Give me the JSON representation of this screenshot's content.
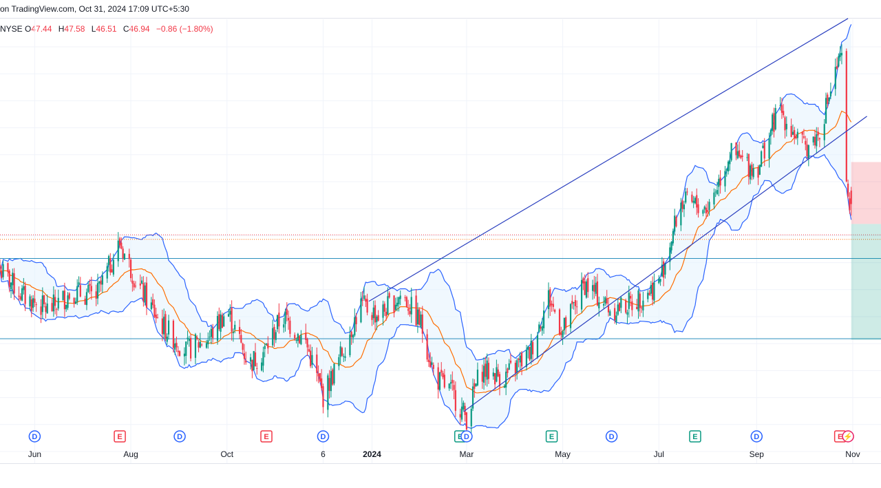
{
  "header": {
    "text": "on TradingView.com, Oct 31, 2024 17:09 UTC+5:30"
  },
  "ohlc": {
    "exchange": "NYSE",
    "o_label": "O",
    "o_value": "47.44",
    "h_label": "H",
    "h_value": "47.58",
    "l_label": "L",
    "l_value": "46.51",
    "c_label": "C",
    "c_value": "46.94",
    "change": "−0.86 (−1.80%)"
  },
  "colors": {
    "up": "#089981",
    "down": "#f23645",
    "band": "#2962ff",
    "band_fill": "#e3f2fd",
    "basis": "#ff6d00",
    "channel": "#2a3fbf",
    "hline": "#2a8fbd",
    "grid": "#f0f3fa",
    "axis_text": "#131722",
    "dividend": "#2962ff",
    "earnings_red": "#f23645",
    "earnings_green": "#089981",
    "split": "#e91e63"
  },
  "chart_data": {
    "type": "candlestick",
    "title": "",
    "x_ticks": [
      "Jun",
      "Aug",
      "Oct",
      "6",
      "2024",
      "Mar",
      "May",
      "Jul",
      "Sep",
      "Nov"
    ],
    "x_range": [
      "2023-05-10",
      "2024-11-08"
    ],
    "y_range": [
      38.8,
      53.8
    ],
    "overlays": [
      "Bollinger Bands (upper, basis, lower)",
      "ascending channel",
      "horizontal support levels",
      "risk/reward position box"
    ],
    "horizontal_levels": [
      44.92,
      41.94
    ],
    "dotted_levels": [
      45.8,
      45.63
    ],
    "channel": {
      "upper": [
        [
          "2023-12-30",
          43.33
        ],
        [
          "2024-10-29",
          53.83
        ]
      ],
      "lower": [
        [
          "2024-02-28",
          39.23
        ],
        [
          "2024-11-10",
          50.2
        ]
      ]
    },
    "position_box": {
      "from": "2024-10-31",
      "to": "2024-11-08",
      "stop": 48.5,
      "entry": 46.2,
      "target": 41.9
    },
    "events": [
      {
        "type": "dividend",
        "label": "D",
        "date": "2023-06-01"
      },
      {
        "type": "earnings",
        "label": "E",
        "date": "2023-07-25",
        "color": "red"
      },
      {
        "type": "dividend",
        "label": "D",
        "date": "2023-09-01"
      },
      {
        "type": "earnings",
        "label": "E",
        "date": "2023-10-26",
        "color": "red"
      },
      {
        "type": "dividend",
        "label": "D",
        "date": "2023-12-01"
      },
      {
        "type": "earnings",
        "label": "E",
        "date": "2024-02-26",
        "color": "green"
      },
      {
        "type": "dividend",
        "label": "D",
        "date": "2024-03-01"
      },
      {
        "type": "earnings",
        "label": "E",
        "date": "2024-04-24",
        "color": "green"
      },
      {
        "type": "dividend",
        "label": "D",
        "date": "2024-06-01"
      },
      {
        "type": "earnings",
        "label": "E",
        "date": "2024-07-24",
        "color": "green"
      },
      {
        "type": "dividend",
        "label": "D",
        "date": "2024-09-01"
      },
      {
        "type": "earnings",
        "label": "E",
        "date": "2024-10-24",
        "color": "red"
      },
      {
        "type": "split",
        "label": "⚡",
        "date": "2024-10-29"
      }
    ],
    "anchors": [
      [
        "2023-05-10",
        44.5
      ],
      [
        "2023-05-25",
        43.5
      ],
      [
        "2023-06-10",
        43.0
      ],
      [
        "2023-06-25",
        43.7
      ],
      [
        "2023-07-10",
        43.5
      ],
      [
        "2023-07-25",
        45.5
      ],
      [
        "2023-08-05",
        44.0
      ],
      [
        "2023-08-20",
        42.5
      ],
      [
        "2023-09-05",
        41.5
      ],
      [
        "2023-09-20",
        42.0
      ],
      [
        "2023-10-01",
        43.0
      ],
      [
        "2023-10-15",
        41.0
      ],
      [
        "2023-10-25",
        41.5
      ],
      [
        "2023-11-05",
        42.8
      ],
      [
        "2023-11-20",
        41.8
      ],
      [
        "2023-12-01",
        39.8
      ],
      [
        "2023-12-10",
        41.0
      ],
      [
        "2023-12-25",
        43.2
      ],
      [
        "2024-01-05",
        42.8
      ],
      [
        "2024-01-20",
        43.6
      ],
      [
        "2024-02-01",
        42.5
      ],
      [
        "2024-02-10",
        40.5
      ],
      [
        "2024-02-20",
        40.0
      ],
      [
        "2024-03-01",
        39.0
      ],
      [
        "2024-03-10",
        40.8
      ],
      [
        "2024-03-25",
        40.5
      ],
      [
        "2024-04-10",
        41.4
      ],
      [
        "2024-04-22",
        43.5
      ],
      [
        "2024-05-01",
        42.2
      ],
      [
        "2024-05-15",
        44.0
      ],
      [
        "2024-06-01",
        43.0
      ],
      [
        "2024-06-15",
        43.3
      ],
      [
        "2024-07-01",
        44.0
      ],
      [
        "2024-07-15",
        47.0
      ],
      [
        "2024-08-01",
        46.8
      ],
      [
        "2024-08-15",
        48.8
      ],
      [
        "2024-09-01",
        48.2
      ],
      [
        "2024-09-15",
        50.5
      ],
      [
        "2024-10-01",
        49.0
      ],
      [
        "2024-10-10",
        49.5
      ],
      [
        "2024-10-22",
        52.0
      ],
      [
        "2024-10-26",
        52.4
      ],
      [
        "2024-10-28",
        47.5
      ],
      [
        "2024-10-31",
        46.9
      ]
    ]
  }
}
